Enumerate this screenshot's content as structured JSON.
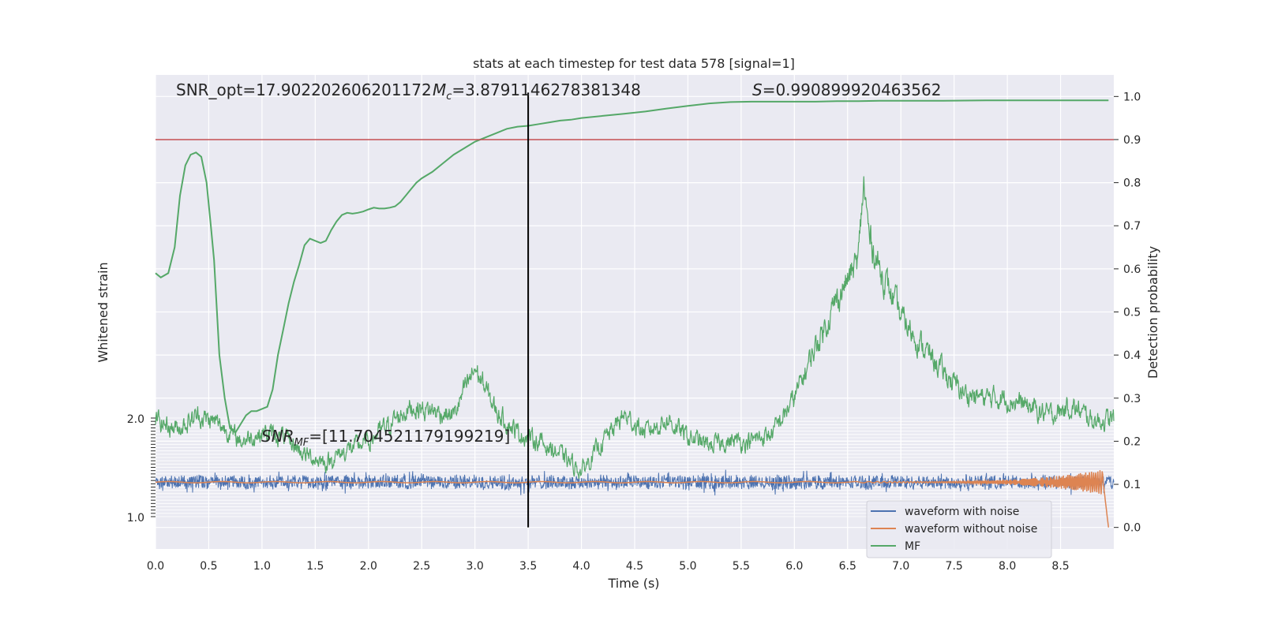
{
  "chart_data": {
    "type": "line",
    "title": "stats at each timestep for test data 578 [signal=1]",
    "xlabel": "Time (s)",
    "ylabel_left": "Whitened strain",
    "ylabel_right": "Detection probability",
    "xlim": [
      0,
      9.0
    ],
    "ylim_right": [
      -0.05,
      1.05
    ],
    "ylim_left": [
      -1.0,
      2.0
    ],
    "x_ticks": [
      0.0,
      0.5,
      1.0,
      1.5,
      2.0,
      2.5,
      3.0,
      3.5,
      4.0,
      4.5,
      5.0,
      5.5,
      6.0,
      6.5,
      7.0,
      7.5,
      8.0,
      8.5
    ],
    "x_tick_labels": [
      "0.0",
      "0.5",
      "1.0",
      "1.5",
      "2.0",
      "2.5",
      "3.0",
      "3.5",
      "4.0",
      "4.5",
      "5.0",
      "5.5",
      "6.0",
      "6.5",
      "7.0",
      "7.5",
      "8.0",
      "8.5"
    ],
    "y_right_ticks": [
      0.0,
      0.1,
      0.2,
      0.3,
      0.4,
      0.5,
      0.6,
      0.7,
      0.8,
      0.9,
      1.0
    ],
    "y_right_tick_labels": [
      "0.0",
      "0.1",
      "0.2",
      "0.3",
      "0.4",
      "0.5",
      "0.6",
      "0.7",
      "0.8",
      "0.9",
      "1.0"
    ],
    "y_left_tick_labels_top": "2.0",
    "y_left_tick_labels_bottom": "1.0",
    "grid": true,
    "threshold": 0.9,
    "vline_x": 3.5,
    "annotations": {
      "snr_opt": "SNR_opt=17.902202606201172",
      "mc": "=3.8791146278381348",
      "s": "=0.990899920463562",
      "snr_mf": "=[11.704521179199219]"
    },
    "prob_curve": {
      "x": [
        0.0,
        0.05,
        0.12,
        0.18,
        0.23,
        0.28,
        0.33,
        0.38,
        0.43,
        0.48,
        0.52,
        0.55,
        0.6,
        0.65,
        0.7,
        0.75,
        0.8,
        0.85,
        0.9,
        0.95,
        1.0,
        1.05,
        1.1,
        1.15,
        1.2,
        1.25,
        1.3,
        1.35,
        1.4,
        1.45,
        1.5,
        1.55,
        1.6,
        1.65,
        1.7,
        1.75,
        1.8,
        1.85,
        1.9,
        1.95,
        2.0,
        2.05,
        2.1,
        2.15,
        2.2,
        2.25,
        2.3,
        2.35,
        2.4,
        2.45,
        2.5,
        2.6,
        2.7,
        2.8,
        2.9,
        3.0,
        3.1,
        3.2,
        3.3,
        3.4,
        3.5,
        3.6,
        3.7,
        3.8,
        3.9,
        4.0,
        4.2,
        4.4,
        4.6,
        4.8,
        5.0,
        5.2,
        5.4,
        5.6,
        5.8,
        6.0,
        6.2,
        6.4,
        6.6,
        6.8,
        7.0,
        7.4,
        7.8,
        8.2,
        8.6,
        8.95
      ],
      "y": [
        0.59,
        0.58,
        0.59,
        0.65,
        0.77,
        0.84,
        0.865,
        0.87,
        0.86,
        0.8,
        0.7,
        0.62,
        0.4,
        0.3,
        0.23,
        0.22,
        0.24,
        0.26,
        0.27,
        0.27,
        0.275,
        0.28,
        0.32,
        0.4,
        0.46,
        0.52,
        0.57,
        0.61,
        0.655,
        0.67,
        0.665,
        0.66,
        0.665,
        0.69,
        0.71,
        0.725,
        0.73,
        0.728,
        0.73,
        0.733,
        0.738,
        0.742,
        0.74,
        0.74,
        0.742,
        0.745,
        0.755,
        0.77,
        0.785,
        0.8,
        0.81,
        0.825,
        0.845,
        0.865,
        0.88,
        0.895,
        0.905,
        0.915,
        0.925,
        0.93,
        0.932,
        0.936,
        0.94,
        0.944,
        0.946,
        0.95,
        0.955,
        0.96,
        0.965,
        0.972,
        0.978,
        0.984,
        0.987,
        0.988,
        0.988,
        0.988,
        0.988,
        0.989,
        0.989,
        0.99,
        0.99,
        0.99,
        0.991,
        0.991,
        0.991,
        0.991
      ]
    },
    "mf_envelope": {
      "x": [
        0.0,
        0.2,
        0.4,
        0.6,
        0.8,
        1.0,
        1.2,
        1.4,
        1.6,
        1.8,
        2.0,
        2.2,
        2.4,
        2.6,
        2.8,
        3.0,
        3.2,
        3.4,
        3.6,
        3.8,
        4.0,
        4.2,
        4.4,
        4.6,
        4.8,
        5.0,
        5.2,
        5.4,
        5.6,
        5.8,
        6.0,
        6.2,
        6.4,
        6.6,
        6.65,
        6.7,
        6.8,
        7.0,
        7.2,
        7.4,
        7.6,
        7.8,
        8.0,
        8.2,
        8.4,
        8.6,
        8.8,
        9.0
      ],
      "y": [
        0.25,
        0.23,
        0.26,
        0.24,
        0.2,
        0.22,
        0.21,
        0.17,
        0.15,
        0.18,
        0.2,
        0.24,
        0.28,
        0.27,
        0.26,
        0.37,
        0.27,
        0.22,
        0.2,
        0.17,
        0.13,
        0.2,
        0.26,
        0.22,
        0.25,
        0.21,
        0.19,
        0.2,
        0.2,
        0.22,
        0.3,
        0.42,
        0.53,
        0.62,
        0.8,
        0.68,
        0.6,
        0.49,
        0.42,
        0.36,
        0.31,
        0.3,
        0.3,
        0.28,
        0.26,
        0.28,
        0.25,
        0.25
      ]
    },
    "legend": {
      "placement": "lower-right",
      "entries": [
        {
          "label": "waveform with noise",
          "color": "#4c72b0"
        },
        {
          "label": "waveform without noise",
          "color": "#dd8452"
        },
        {
          "label": "MF",
          "color": "#55a868"
        }
      ]
    },
    "colors": {
      "background": "#eaeaf2",
      "grid": "#ffffff",
      "threshold": "#c44e52",
      "vline": "#000000",
      "prob": "#55a868",
      "mf": "#55a868",
      "noise": "#4c72b0",
      "clean": "#dd8452"
    }
  }
}
